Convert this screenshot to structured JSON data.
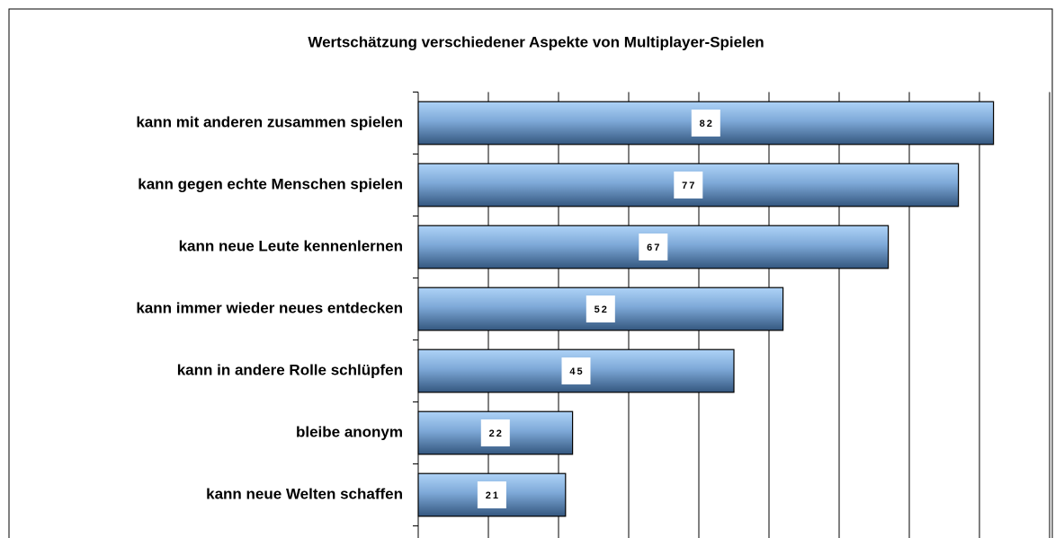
{
  "chart_data": {
    "type": "bar",
    "orientation": "horizontal",
    "title": "Wertschätzung  verschiedener Aspekte von  Multiplayer-Spielen",
    "categories": [
      "kann mit anderen zusammen spielen",
      "kann gegen echte Menschen spielen",
      "kann neue Leute kennenlernen",
      "kann immer wieder neues entdecken",
      "kann in andere Rolle schlüpfen",
      "bleibe anonym",
      "kann neue Welten schaffen"
    ],
    "values": [
      82,
      77,
      67,
      52,
      45,
      22,
      21
    ],
    "color": "#5b86b8",
    "xlim": [
      0,
      90
    ],
    "xticks": [
      0,
      10,
      20,
      30,
      40,
      50,
      60,
      70,
      80,
      90
    ],
    "grid": true
  }
}
